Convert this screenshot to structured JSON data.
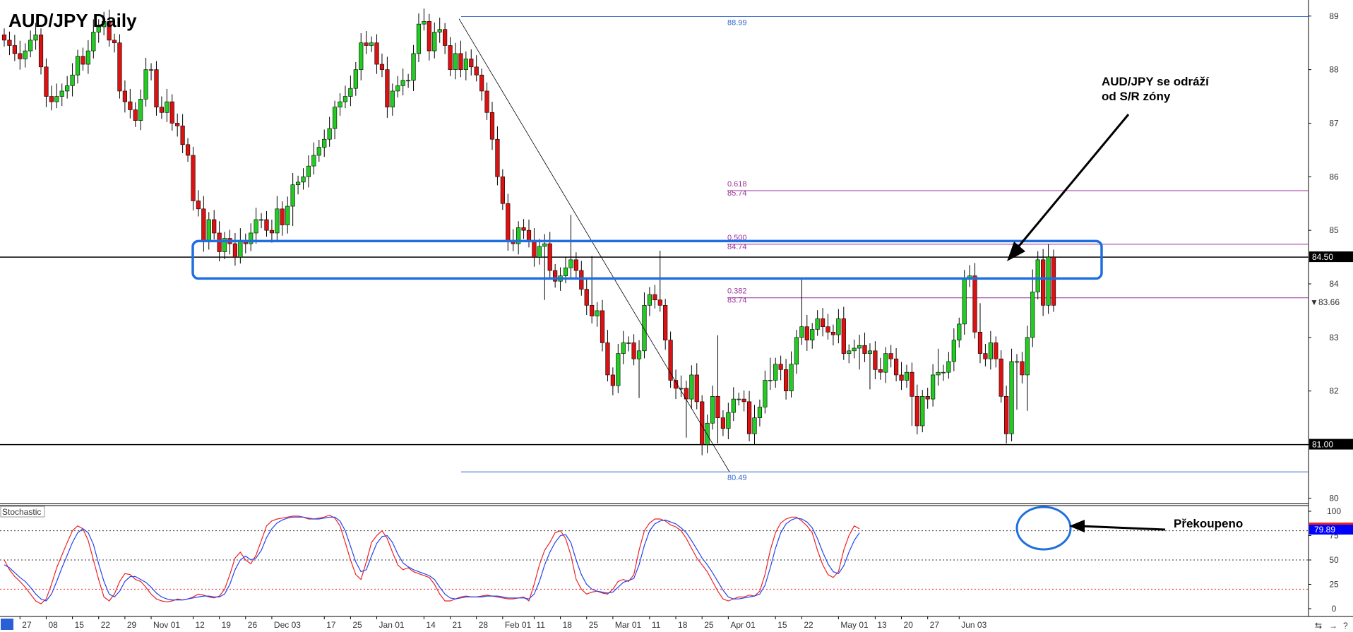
{
  "colors": {
    "bull": "#22cc22",
    "bear": "#dd1111",
    "wick": "#000000",
    "fib_line": "#993399",
    "range_line": "#3366cc",
    "sr_box": "#1f6fe0",
    "stoch_k": "#ee2222",
    "stoch_d": "#2244ee",
    "stoch_overbought": "#0000ff",
    "axis_label_bg": "#000000"
  },
  "chart_data": [
    {
      "type": "candlestick",
      "title": "AUD/JPY Daily",
      "ylim": [
        79.9,
        89.3
      ],
      "yticks": [
        80,
        81,
        82,
        83,
        84,
        85,
        86,
        87,
        88,
        89
      ],
      "x_tick_labels": [
        "27",
        "08",
        "15",
        "22",
        "29",
        "Nov 01",
        "12",
        "19",
        "26",
        "Dec 03",
        "17",
        "25",
        "Jan 01",
        "14",
        "21",
        "28",
        "Feb 01",
        "11",
        "18",
        "25",
        "Mar 01",
        "11",
        "18",
        "25",
        "Apr 01",
        "15",
        "22",
        "May 01",
        "13",
        "20",
        "27",
        "Jun 03"
      ],
      "close_series": [
        88.55,
        88.45,
        88.3,
        88.2,
        88.35,
        88.55,
        88.65,
        88.05,
        87.5,
        87.4,
        87.5,
        87.6,
        87.7,
        87.9,
        88.25,
        88.1,
        88.35,
        88.7,
        88.8,
        88.9,
        88.55,
        88.5,
        87.6,
        87.4,
        87.25,
        87.05,
        87.45,
        88.0,
        88.0,
        87.3,
        87.2,
        87.4,
        87.0,
        86.95,
        86.6,
        86.4,
        85.55,
        85.4,
        84.8,
        85.2,
        84.95,
        84.6,
        84.85,
        84.75,
        84.5,
        84.8,
        84.75,
        84.95,
        85.2,
        85.2,
        85.0,
        84.95,
        85.4,
        85.1,
        85.45,
        85.85,
        85.9,
        86.0,
        86.2,
        86.4,
        86.55,
        86.7,
        86.9,
        87.3,
        87.4,
        87.5,
        87.65,
        88.0,
        88.5,
        88.45,
        88.5,
        88.1,
        88.0,
        87.3,
        87.6,
        87.7,
        87.8,
        87.8,
        88.3,
        88.85,
        88.9,
        88.35,
        88.7,
        88.75,
        88.45,
        88.0,
        88.3,
        88.0,
        88.2,
        88.05,
        87.9,
        87.6,
        87.2,
        86.7,
        86.0,
        85.5,
        84.8,
        84.75,
        85.05,
        85.0,
        84.8,
        84.5,
        84.7,
        84.75,
        84.25,
        84.05,
        84.15,
        84.3,
        84.45,
        84.25,
        83.9,
        83.6,
        83.4,
        83.5,
        82.9,
        82.3,
        82.1,
        82.7,
        82.9,
        82.9,
        82.6,
        82.75,
        83.6,
        83.8,
        83.7,
        83.6,
        82.95,
        82.2,
        82.05,
        82.05,
        81.85,
        82.3,
        81.8,
        81.0,
        81.4,
        81.9,
        81.5,
        81.3,
        81.6,
        81.85,
        81.85,
        81.8,
        81.2,
        81.5,
        81.7,
        82.2,
        82.2,
        82.5,
        82.4,
        82.0,
        82.5,
        83.0,
        83.2,
        82.95,
        83.15,
        83.35,
        83.2,
        83.1,
        83.05,
        83.35,
        82.7,
        82.75,
        82.8,
        82.85,
        82.7,
        82.75,
        82.4,
        82.35,
        82.7,
        82.6,
        82.3,
        82.2,
        82.35,
        81.9,
        81.35,
        81.9,
        81.85,
        82.3,
        82.35,
        82.35,
        82.55,
        82.95,
        83.25,
        84.1,
        84.15,
        83.1,
        82.7,
        82.6,
        82.9,
        82.6,
        81.9,
        81.2,
        82.55,
        82.55,
        82.3,
        83.0,
        83.85,
        84.45,
        83.6,
        84.5,
        83.6
      ],
      "horizontal_levels": [
        {
          "label": "88.99",
          "value": 88.99,
          "kind": "range"
        },
        {
          "label": "80.49",
          "value": 80.49,
          "kind": "range"
        },
        {
          "label_ratio": "0.618",
          "label": "85.74",
          "value": 85.74,
          "kind": "fib"
        },
        {
          "label_ratio": "0.500",
          "label": "84.74",
          "value": 84.74,
          "kind": "fib"
        },
        {
          "label_ratio": "0.382",
          "label": "83.74",
          "value": 83.74,
          "kind": "fib"
        },
        {
          "label": "84.50",
          "value": 84.5,
          "kind": "sr"
        },
        {
          "label": "81.00",
          "value": 81.0,
          "kind": "sr"
        }
      ],
      "last_price_label": "83.66",
      "sr_zone": [
        84.1,
        84.8
      ],
      "annotations": {
        "main_line1": "AUD/JPY se odráží",
        "main_line2": "od S/R zóny"
      }
    },
    {
      "type": "line",
      "title": "Stochastic",
      "ylim": [
        0,
        100
      ],
      "yticks": [
        0,
        25,
        50,
        75,
        100
      ],
      "current_value_label": "79.89",
      "annotation": "Překoupeno",
      "series": [
        {
          "color": "#ee2222",
          "values": [
            50,
            40,
            33,
            28,
            22,
            15,
            8,
            5,
            10,
            25,
            42,
            55,
            68,
            80,
            85,
            82,
            70,
            50,
            30,
            12,
            8,
            15,
            28,
            36,
            35,
            30,
            28,
            22,
            15,
            10,
            8,
            7,
            8,
            10,
            9,
            10,
            12,
            15,
            14,
            12,
            11,
            13,
            20,
            35,
            52,
            58,
            50,
            46,
            55,
            70,
            85,
            90,
            92,
            93,
            94,
            95,
            95,
            94,
            92,
            92,
            93,
            94,
            96,
            93,
            85,
            68,
            50,
            35,
            30,
            48,
            68,
            75,
            80,
            72,
            58,
            45,
            40,
            42,
            38,
            36,
            34,
            32,
            25,
            15,
            8,
            8,
            10,
            12,
            13,
            12,
            12,
            13,
            14,
            13,
            12,
            11,
            10,
            10,
            11,
            12,
            8,
            25,
            45,
            60,
            68,
            78,
            80,
            72,
            55,
            30,
            20,
            15,
            17,
            18,
            16,
            15,
            20,
            28,
            30,
            28,
            35,
            60,
            80,
            88,
            92,
            92,
            90,
            86,
            84,
            80,
            72,
            62,
            52,
            45,
            38,
            28,
            18,
            10,
            8,
            10,
            12,
            12,
            14,
            13,
            18,
            35,
            60,
            78,
            88,
            92,
            94,
            94,
            90,
            85,
            78,
            60,
            45,
            35,
            32,
            38,
            60,
            75,
            85,
            82
          ]
        },
        {
          "color": "#2244ee",
          "values": [
            45,
            42,
            37,
            32,
            28,
            22,
            15,
            10,
            8,
            15,
            28,
            42,
            55,
            68,
            78,
            82,
            78,
            66,
            46,
            28,
            15,
            12,
            18,
            28,
            33,
            33,
            30,
            27,
            22,
            16,
            12,
            10,
            9,
            9,
            9,
            10,
            11,
            12,
            13,
            13,
            12,
            12,
            15,
            25,
            40,
            50,
            54,
            50,
            52,
            60,
            73,
            82,
            88,
            91,
            93,
            94,
            94,
            94,
            93,
            92,
            92,
            93,
            94,
            94,
            90,
            80,
            64,
            48,
            38,
            40,
            54,
            67,
            74,
            75,
            68,
            56,
            47,
            43,
            40,
            38,
            36,
            34,
            30,
            22,
            15,
            11,
            10,
            11,
            12,
            12,
            12,
            12,
            13,
            13,
            13,
            12,
            11,
            11,
            11,
            11,
            10,
            15,
            28,
            45,
            58,
            68,
            75,
            76,
            68,
            50,
            35,
            25,
            20,
            18,
            17,
            16,
            17,
            22,
            27,
            29,
            31,
            45,
            65,
            80,
            87,
            90,
            91,
            89,
            87,
            83,
            78,
            70,
            61,
            52,
            45,
            37,
            28,
            19,
            12,
            10,
            10,
            11,
            12,
            13,
            15,
            24,
            42,
            62,
            78,
            87,
            91,
            93,
            92,
            89,
            83,
            72,
            58,
            46,
            38,
            36,
            44,
            58,
            70,
            78
          ]
        }
      ],
      "x_tick_labels": [
        "27",
        "08",
        "15",
        "22",
        "29",
        "Nov 01",
        "12",
        "19",
        "26",
        "Dec 03",
        "17",
        "25",
        "Jan 01",
        "14",
        "21",
        "28",
        "Feb 01",
        "11",
        "18",
        "25",
        "Mar 01",
        "11",
        "18",
        "25",
        "Apr 01",
        "15",
        "22",
        "May 01",
        "13",
        "20",
        "27",
        "Jun 03"
      ]
    }
  ]
}
